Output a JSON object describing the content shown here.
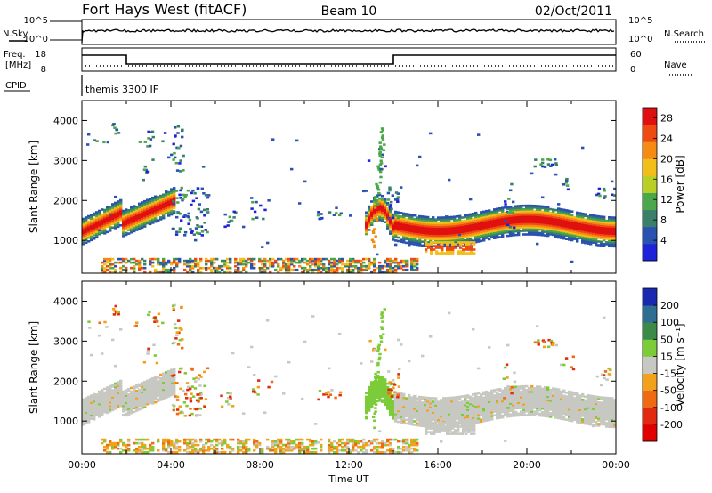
{
  "header": {
    "radar": "Fort Hays West (fitACF)",
    "beam": "Beam 10",
    "date": "02/Oct/2011"
  },
  "top_panels": {
    "nsky_label": "N.Sky",
    "nsearch_label": "N.Search",
    "count_ticks": [
      "10^5",
      "10^0"
    ],
    "freq_label_1": "Freq.",
    "freq_label_2": "[MHz]",
    "freq_ticks": [
      "18",
      "8"
    ],
    "nave_label": "Nave",
    "nave_ticks": [
      "60",
      "0"
    ],
    "cpid_label": "CPID",
    "cpid_value": "themis 3300 IF"
  },
  "chart_data": [
    {
      "type": "heatmap",
      "name": "power",
      "ylabel": "Slant Range [km]",
      "xlabel": "",
      "x_range_hours": [
        0,
        24
      ],
      "ylim": [
        180,
        4500
      ],
      "yticks": [
        1000,
        2000,
        3000,
        4000
      ],
      "colorbar_label": "Power [dB]",
      "colorbar_ticks": [
        4,
        8,
        12,
        16,
        20,
        24,
        28
      ],
      "colorbar_range": [
        0,
        30
      ],
      "colors": [
        "#1e22d8",
        "#2a52b0",
        "#3a7f6a",
        "#4aa84a",
        "#b9cf26",
        "#f2be1a",
        "#f58a14",
        "#ef4a12",
        "#e01010"
      ]
    },
    {
      "type": "heatmap",
      "name": "velocity",
      "ylabel": "Slant Range [km]",
      "xlabel": "Time UT",
      "x_range_hours": [
        0,
        24
      ],
      "ylim": [
        180,
        4500
      ],
      "yticks": [
        1000,
        2000,
        3000,
        4000
      ],
      "xticks": [
        "00:00",
        "04:00",
        "08:00",
        "12:00",
        "16:00",
        "20:00",
        "00:00"
      ],
      "colorbar_label": "Velocity [m s⁻¹]",
      "colorbar_ticks": [
        "200",
        "100",
        "50",
        "15",
        "-15",
        "-50",
        "-100",
        "-200"
      ],
      "colors": [
        "#1a2ab0",
        "#2e6e92",
        "#3a8a48",
        "#7ccc3a",
        "#c8c8c2",
        "#f2a21a",
        "#ef6a12",
        "#e22a10",
        "#e00000"
      ]
    }
  ]
}
